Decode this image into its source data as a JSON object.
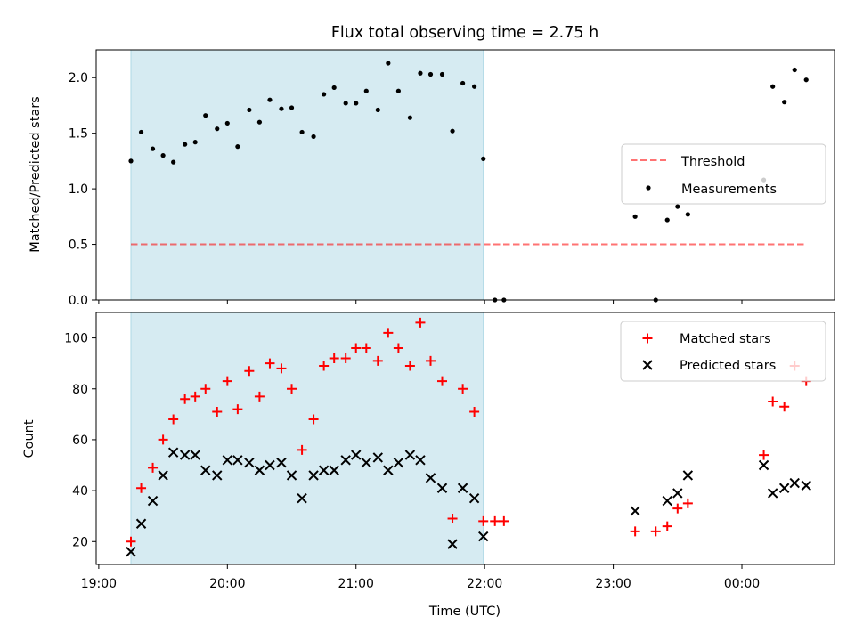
{
  "title": "Flux total observing time = 2.75 h",
  "colors": {
    "shade": "#add8e6",
    "threshold": "#ff0000",
    "matched": "#ff0000",
    "predicted": "#000000",
    "measurement": "#000000"
  },
  "chart_data": [
    {
      "type": "scatter",
      "ylabel": "Matched/Predicted stars",
      "ylim": [
        0,
        2.25
      ],
      "yticks": [
        0.0,
        0.5,
        1.0,
        1.5,
        2.0
      ],
      "ytick_labels": [
        "0.0",
        "0.5",
        "1.0",
        "1.5",
        "2.0"
      ],
      "xlim_hours": [
        18.98,
        24.72
      ],
      "shaded_span_hours": [
        19.25,
        21.99
      ],
      "threshold": {
        "name": "Threshold",
        "y": 0.5,
        "x_hours": [
          19.25,
          24.5
        ]
      },
      "legend": {
        "placement": "center-right",
        "entries": [
          "Threshold",
          "Measurements"
        ]
      },
      "series": [
        {
          "name": "Measurements",
          "x_hours": [
            19.25,
            19.33,
            19.42,
            19.5,
            19.58,
            19.67,
            19.75,
            19.83,
            19.92,
            20.0,
            20.08,
            20.17,
            20.25,
            20.33,
            20.42,
            20.5,
            20.58,
            20.67,
            20.75,
            20.83,
            20.92,
            21.0,
            21.08,
            21.17,
            21.25,
            21.33,
            21.42,
            21.5,
            21.58,
            21.67,
            21.75,
            21.83,
            21.92,
            21.99,
            22.08,
            22.15,
            23.17,
            23.33,
            23.42,
            23.5,
            23.58,
            24.17,
            24.24,
            24.33,
            24.41,
            24.5
          ],
          "y": [
            1.25,
            1.51,
            1.36,
            1.3,
            1.24,
            1.4,
            1.42,
            1.66,
            1.54,
            1.59,
            1.38,
            1.71,
            1.6,
            1.8,
            1.72,
            1.73,
            1.51,
            1.47,
            1.85,
            1.91,
            1.77,
            1.77,
            1.88,
            1.71,
            2.13,
            1.88,
            1.64,
            2.04,
            2.03,
            2.03,
            1.52,
            1.95,
            1.92,
            1.27,
            0.0,
            0.0,
            0.75,
            0.0,
            0.72,
            0.84,
            0.77,
            1.08,
            1.92,
            1.78,
            2.07,
            1.98
          ]
        }
      ]
    },
    {
      "type": "scatter",
      "xlabel": "Time (UTC)",
      "ylabel": "Count",
      "ylim": [
        11,
        110
      ],
      "yticks": [
        20,
        40,
        60,
        80,
        100
      ],
      "ytick_labels": [
        "20",
        "40",
        "60",
        "80",
        "100"
      ],
      "xlim_hours": [
        18.98,
        24.72
      ],
      "xticks_hours": [
        19,
        20,
        21,
        22,
        23,
        24
      ],
      "xtick_labels": [
        "19:00",
        "20:00",
        "21:00",
        "22:00",
        "23:00",
        "00:00"
      ],
      "shaded_span_hours": [
        19.25,
        21.99
      ],
      "legend": {
        "placement": "upper-right",
        "entries": [
          "Matched stars",
          "Predicted stars"
        ]
      },
      "series": [
        {
          "name": "Matched stars",
          "marker": "+",
          "x_hours": [
            19.25,
            19.33,
            19.42,
            19.5,
            19.58,
            19.67,
            19.75,
            19.83,
            19.92,
            20.0,
            20.08,
            20.17,
            20.25,
            20.33,
            20.42,
            20.5,
            20.58,
            20.67,
            20.75,
            20.83,
            20.92,
            21.0,
            21.08,
            21.17,
            21.25,
            21.33,
            21.42,
            21.5,
            21.58,
            21.67,
            21.75,
            21.83,
            21.92,
            21.99,
            22.08,
            22.15,
            23.17,
            23.33,
            23.42,
            23.5,
            23.58,
            24.17,
            24.24,
            24.33,
            24.41,
            24.5
          ],
          "y": [
            20,
            41,
            49,
            60,
            68,
            76,
            77,
            80,
            71,
            83,
            72,
            87,
            77,
            90,
            88,
            80,
            56,
            68,
            89,
            92,
            92,
            96,
            96,
            91,
            102,
            96,
            89,
            106,
            91,
            83,
            29,
            80,
            71,
            28,
            28,
            28,
            24,
            24,
            26,
            33,
            35,
            54,
            75,
            73,
            89,
            83
          ]
        },
        {
          "name": "Predicted stars",
          "marker": "x",
          "x_hours": [
            19.25,
            19.33,
            19.42,
            19.5,
            19.58,
            19.67,
            19.75,
            19.83,
            19.92,
            20.0,
            20.08,
            20.17,
            20.25,
            20.33,
            20.42,
            20.5,
            20.58,
            20.67,
            20.75,
            20.83,
            20.92,
            21.0,
            21.08,
            21.17,
            21.25,
            21.33,
            21.42,
            21.5,
            21.58,
            21.67,
            21.75,
            21.83,
            21.92,
            21.99,
            23.17,
            23.42,
            23.5,
            23.58,
            24.17,
            24.24,
            24.33,
            24.41,
            24.5
          ],
          "y": [
            16,
            27,
            36,
            46,
            55,
            54,
            54,
            48,
            46,
            52,
            52,
            51,
            48,
            50,
            51,
            46,
            37,
            46,
            48,
            48,
            52,
            54,
            51,
            53,
            48,
            51,
            54,
            52,
            45,
            41,
            19,
            41,
            37,
            22,
            32,
            36,
            39,
            46,
            50,
            39,
            41,
            43,
            42
          ]
        }
      ]
    }
  ]
}
